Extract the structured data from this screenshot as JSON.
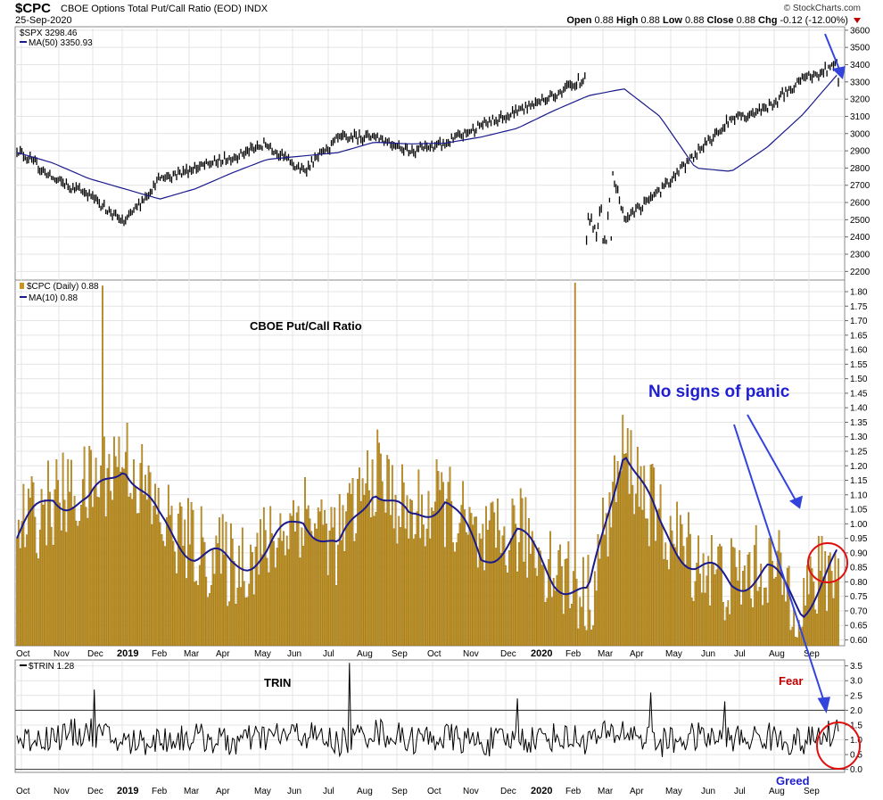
{
  "header": {
    "symbol": "$CPC",
    "title": "CBOE Options Total Put/Call Ratio (EOD)  INDX",
    "date": "25-Sep-2020",
    "credit": "© StockCharts.com",
    "open_label": "Open",
    "open": "0.88",
    "high_label": "High",
    "high": "0.88",
    "low_label": "Low",
    "low": "0.88",
    "close_label": "Close",
    "close": "0.88",
    "chg_label": "Chg",
    "chg": "-0.12 (-12.00%)"
  },
  "legends": {
    "spx": "$SPX 3298.46",
    "spx_ma": "MA(50) 3350.93",
    "cpc": "$CPC (Daily) 0.88",
    "cpc_ma": "MA(10) 0.88",
    "trin": "$TRIN 1.28"
  },
  "annotations": {
    "cpc_title": "CBOE Put/Call Ratio",
    "no_panic": "No signs of panic",
    "trin_title": "TRIN",
    "fear": "Fear",
    "greed": "Greed"
  },
  "colors": {
    "bars": "#c8961e",
    "bar_edge": "#7a5a10",
    "ma_line": "#1a1a8c",
    "price": "#000000",
    "annot_blue": "#1f1fd1",
    "annot_red": "#c00000",
    "circle": "#e01010"
  },
  "x_axis": {
    "months": [
      "Oct",
      "Nov",
      "Dec",
      "2019",
      "Feb",
      "Mar",
      "Apr",
      "May",
      "Jun",
      "Jul",
      "Aug",
      "Sep",
      "Oct",
      "Nov",
      "Dec",
      "2020",
      "Feb",
      "Mar",
      "Apr",
      "May",
      "Jun",
      "Jul",
      "Aug",
      "Sep"
    ],
    "year_labels": [
      "2019",
      "2020"
    ]
  },
  "chart_data": [
    {
      "type": "line",
      "name": "$SPX",
      "ylim": [
        2150,
        3620
      ],
      "yticks": [
        2200,
        2300,
        2400,
        2500,
        2600,
        2700,
        2800,
        2900,
        3000,
        3100,
        3200,
        3300,
        3400,
        3500,
        3600
      ],
      "x": [
        "2018-10",
        "2018-11",
        "2018-12",
        "2019-01",
        "2019-02",
        "2019-03",
        "2019-04",
        "2019-05",
        "2019-06",
        "2019-07",
        "2019-08",
        "2019-09",
        "2019-10",
        "2019-11",
        "2019-12",
        "2020-01",
        "2020-02",
        "2020-03",
        "2020-04",
        "2020-05",
        "2020-06",
        "2020-07",
        "2020-08",
        "2020-09"
      ],
      "series": [
        {
          "name": "$SPX",
          "values": [
            2910,
            2740,
            2650,
            2480,
            2740,
            2800,
            2860,
            2940,
            2780,
            2970,
            2990,
            2900,
            2940,
            3050,
            3130,
            3220,
            3330,
            2500,
            2660,
            2880,
            3090,
            3150,
            3310,
            3400
          ]
        },
        {
          "name": "MA(50)",
          "values": [
            2890,
            2830,
            2740,
            2680,
            2620,
            2680,
            2770,
            2850,
            2870,
            2890,
            2950,
            2940,
            2945,
            2980,
            3030,
            3130,
            3220,
            3260,
            3100,
            2800,
            2780,
            2920,
            3110,
            3350
          ]
        }
      ],
      "last": 3298.46
    },
    {
      "type": "bar",
      "name": "$CPC",
      "ylim": [
        0.58,
        1.84
      ],
      "yticks": [
        0.6,
        0.65,
        0.7,
        0.75,
        0.8,
        0.85,
        0.9,
        0.95,
        1.0,
        1.05,
        1.1,
        1.15,
        1.2,
        1.25,
        1.3,
        1.35,
        1.4,
        1.45,
        1.5,
        1.55,
        1.6,
        1.65,
        1.7,
        1.75,
        1.8
      ],
      "x": [
        "2018-10",
        "2018-11",
        "2018-12",
        "2019-01",
        "2019-02",
        "2019-03",
        "2019-04",
        "2019-05",
        "2019-06",
        "2019-07",
        "2019-08",
        "2019-09",
        "2019-10",
        "2019-11",
        "2019-12",
        "2020-01",
        "2020-02",
        "2020-03",
        "2020-04",
        "2020-05",
        "2020-06",
        "2020-07",
        "2020-08",
        "2020-09"
      ],
      "series": [
        {
          "name": "$CPC (Daily)",
          "values": [
            0.98,
            1.08,
            1.12,
            1.25,
            1.02,
            0.92,
            0.86,
            0.92,
            1.05,
            0.94,
            1.18,
            1.02,
            1.08,
            0.9,
            0.98,
            0.86,
            0.74,
            1.25,
            1.0,
            0.88,
            0.8,
            0.86,
            0.74,
            0.88
          ]
        },
        {
          "name": "MA(10)",
          "values": [
            0.95,
            1.1,
            1.06,
            1.22,
            1.0,
            0.9,
            0.86,
            0.9,
            1.03,
            0.9,
            1.14,
            1.0,
            1.1,
            0.87,
            0.97,
            0.82,
            0.74,
            1.28,
            0.98,
            0.86,
            0.79,
            0.84,
            0.71,
            0.88
          ]
        }
      ],
      "peaks": [
        1.82,
        1.83
      ],
      "last": 0.88
    },
    {
      "type": "line",
      "name": "$TRIN",
      "ylim": [
        -0.1,
        3.7
      ],
      "yticks": [
        0.0,
        0.5,
        1.0,
        1.5,
        2.0,
        2.5,
        3.0,
        3.5
      ],
      "reference_lines": [
        2.0,
        0.0
      ],
      "x": [
        "2018-10",
        "2018-11",
        "2018-12",
        "2019-01",
        "2019-02",
        "2019-03",
        "2019-04",
        "2019-05",
        "2019-06",
        "2019-07",
        "2019-08",
        "2019-09",
        "2019-10",
        "2019-11",
        "2019-12",
        "2020-01",
        "2020-02",
        "2020-03",
        "2020-04",
        "2020-05",
        "2020-06",
        "2020-07",
        "2020-08",
        "2020-09"
      ],
      "series": [
        {
          "name": "$TRIN",
          "values": [
            1.0,
            1.1,
            1.3,
            0.9,
            1.0,
            1.1,
            0.9,
            1.1,
            1.2,
            0.9,
            1.3,
            1.0,
            1.1,
            0.9,
            1.0,
            1.1,
            1.0,
            1.3,
            0.9,
            1.1,
            1.0,
            1.1,
            0.9,
            1.28
          ]
        }
      ],
      "spikes": [
        2.7,
        3.6,
        2.4,
        2.6,
        2.3
      ],
      "last": 1.28
    }
  ]
}
